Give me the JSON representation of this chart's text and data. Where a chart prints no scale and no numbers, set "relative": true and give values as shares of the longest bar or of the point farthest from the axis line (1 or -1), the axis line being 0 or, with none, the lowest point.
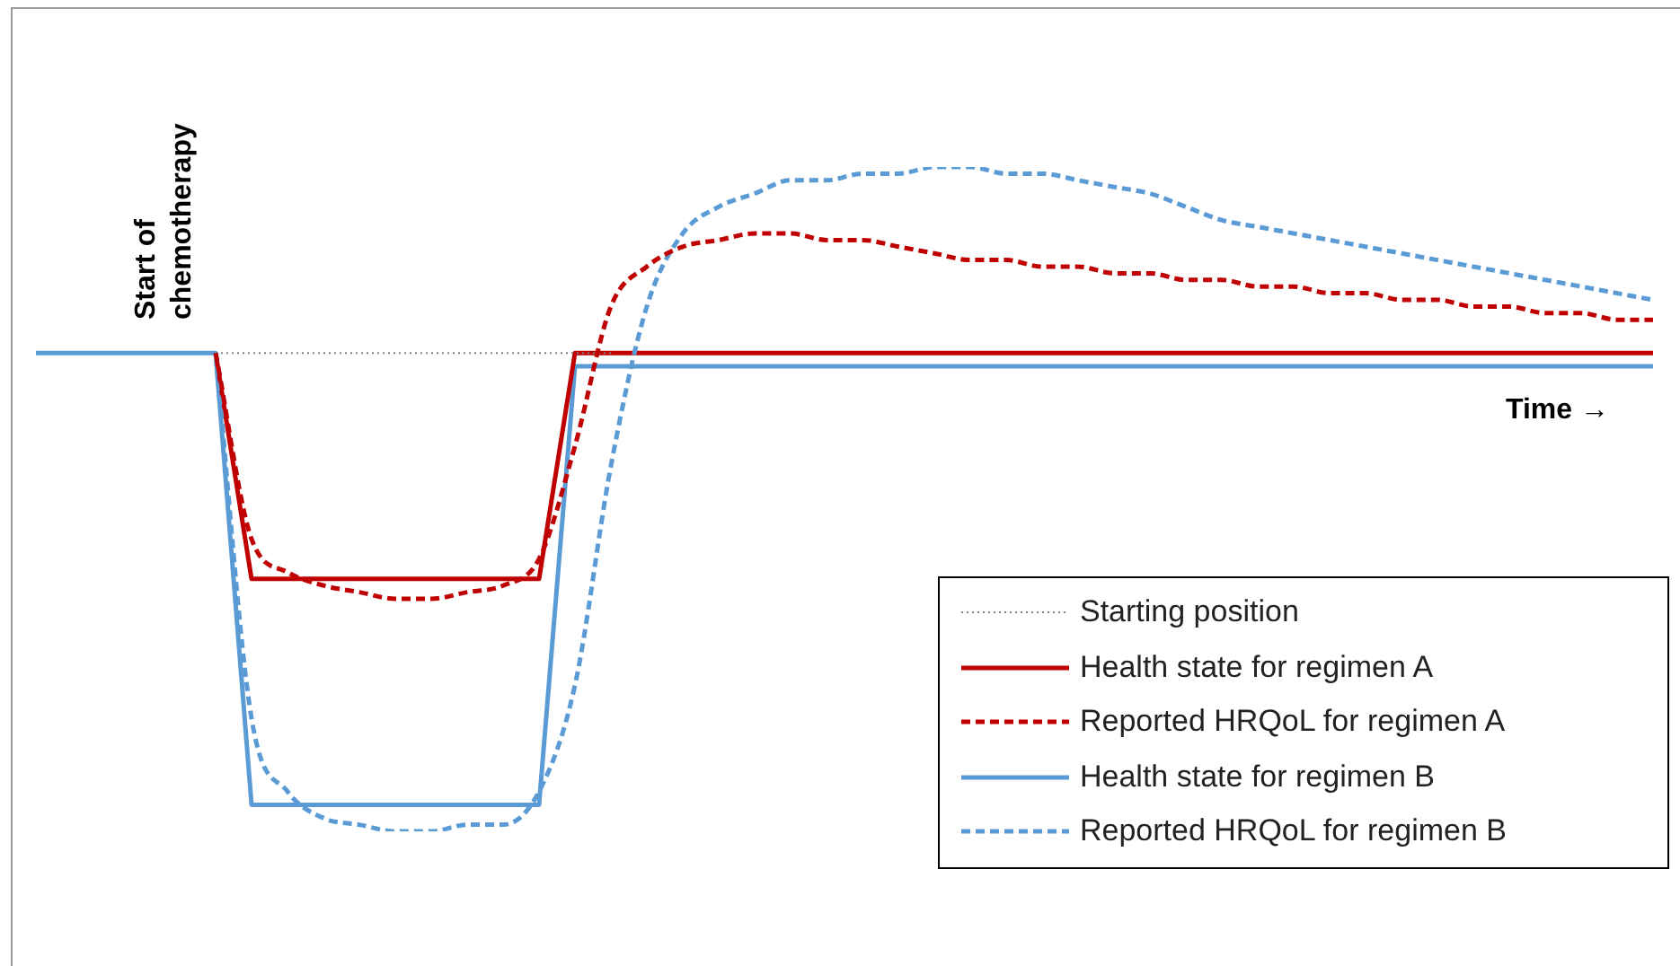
{
  "chart_data": {
    "type": "line",
    "relative": true,
    "legend": "bottom right",
    "marker": "none",
    "categories": [
      null,
      null,
      null,
      null,
      null,
      null,
      null,
      null,
      null,
      null,
      null,
      null,
      null,
      null,
      null,
      null,
      null,
      null,
      null,
      null,
      null,
      null,
      null,
      null,
      null,
      null,
      null,
      null,
      null,
      null,
      null,
      null,
      null,
      null,
      null,
      null,
      null,
      null,
      null,
      null,
      null,
      null,
      null,
      null,
      null,
      null
    ],
    "annotations": [
      "Start of chemotherapy",
      "Time →"
    ],
    "series": [
      {
        "name": "Starting position",
        "color": "#808080",
        "line_style": "dotted",
        "values": [
          null,
          null,
          null,
          null,
          null,
          0.72,
          0.72,
          0.72,
          0.72,
          0.72,
          0.72,
          0.72,
          0.72,
          0.72,
          0.72,
          0.72,
          0.72,
          null,
          null,
          null,
          null,
          null,
          null,
          null,
          null,
          null,
          null,
          null,
          null,
          null,
          null,
          null,
          null,
          null,
          null,
          null,
          null,
          null,
          null,
          null,
          null,
          null,
          null,
          null,
          null,
          null
        ]
      },
      {
        "name": "Health state for regimen A",
        "color": "#c00000",
        "line_style": "solid",
        "values": [
          null,
          null,
          null,
          null,
          null,
          0.72,
          0.38,
          0.38,
          0.38,
          0.38,
          0.38,
          0.38,
          0.38,
          0.38,
          0.38,
          0.72,
          0.72,
          0.72,
          0.72,
          0.72,
          0.72,
          0.72,
          0.72,
          0.72,
          0.72,
          0.72,
          0.72,
          0.72,
          0.72,
          0.72,
          0.72,
          0.72,
          0.72,
          0.72,
          0.72,
          0.72,
          0.72,
          0.72,
          0.72,
          0.72,
          0.72,
          0.72,
          0.72,
          0.72,
          0.72,
          0.72
        ]
      },
      {
        "name": "Reported HRQoL for regimen A",
        "color": "#c00000",
        "line_style": "dashed",
        "values": [
          null,
          null,
          null,
          null,
          null,
          0.72,
          0.44,
          0.39,
          0.37,
          0.36,
          0.35,
          0.35,
          0.36,
          0.37,
          0.41,
          0.58,
          0.79,
          0.85,
          0.88,
          0.89,
          0.9,
          0.9,
          0.89,
          0.89,
          0.88,
          0.87,
          0.86,
          0.86,
          0.85,
          0.85,
          0.84,
          0.84,
          0.83,
          0.83,
          0.82,
          0.82,
          0.81,
          0.81,
          0.8,
          0.8,
          0.79,
          0.79,
          0.78,
          0.78,
          0.77,
          0.77
        ]
      },
      {
        "name": "Health state for regimen B",
        "color": "#5b9bd5",
        "line_style": "solid",
        "values": [
          0.72,
          0.72,
          0.72,
          0.72,
          0.72,
          0.72,
          0.04,
          0.04,
          0.04,
          0.04,
          0.04,
          0.04,
          0.04,
          0.04,
          0.04,
          0.7,
          0.7,
          0.7,
          0.7,
          0.7,
          0.7,
          0.7,
          0.7,
          0.7,
          0.7,
          0.7,
          0.7,
          0.7,
          0.7,
          0.7,
          0.7,
          0.7,
          0.7,
          0.7,
          0.7,
          0.7,
          0.7,
          0.7,
          0.7,
          0.7,
          0.7,
          0.7,
          0.7,
          0.7,
          0.7,
          0.7
        ]
      },
      {
        "name": "Reported HRQoL for regimen B",
        "color": "#5b9bd5",
        "line_style": "dashed",
        "values": [
          null,
          null,
          null,
          null,
          null,
          0.72,
          0.17,
          0.06,
          0.02,
          0.01,
          0.0,
          0.0,
          0.01,
          0.01,
          0.06,
          0.22,
          0.55,
          0.79,
          0.9,
          0.94,
          0.96,
          0.98,
          0.98,
          0.99,
          0.99,
          1.0,
          1.0,
          0.99,
          0.99,
          0.98,
          0.97,
          0.96,
          0.94,
          0.92,
          0.91,
          0.9,
          0.89,
          0.88,
          0.87,
          0.86,
          0.85,
          0.84,
          0.83,
          0.82,
          0.81,
          0.8
        ]
      }
    ]
  }
}
